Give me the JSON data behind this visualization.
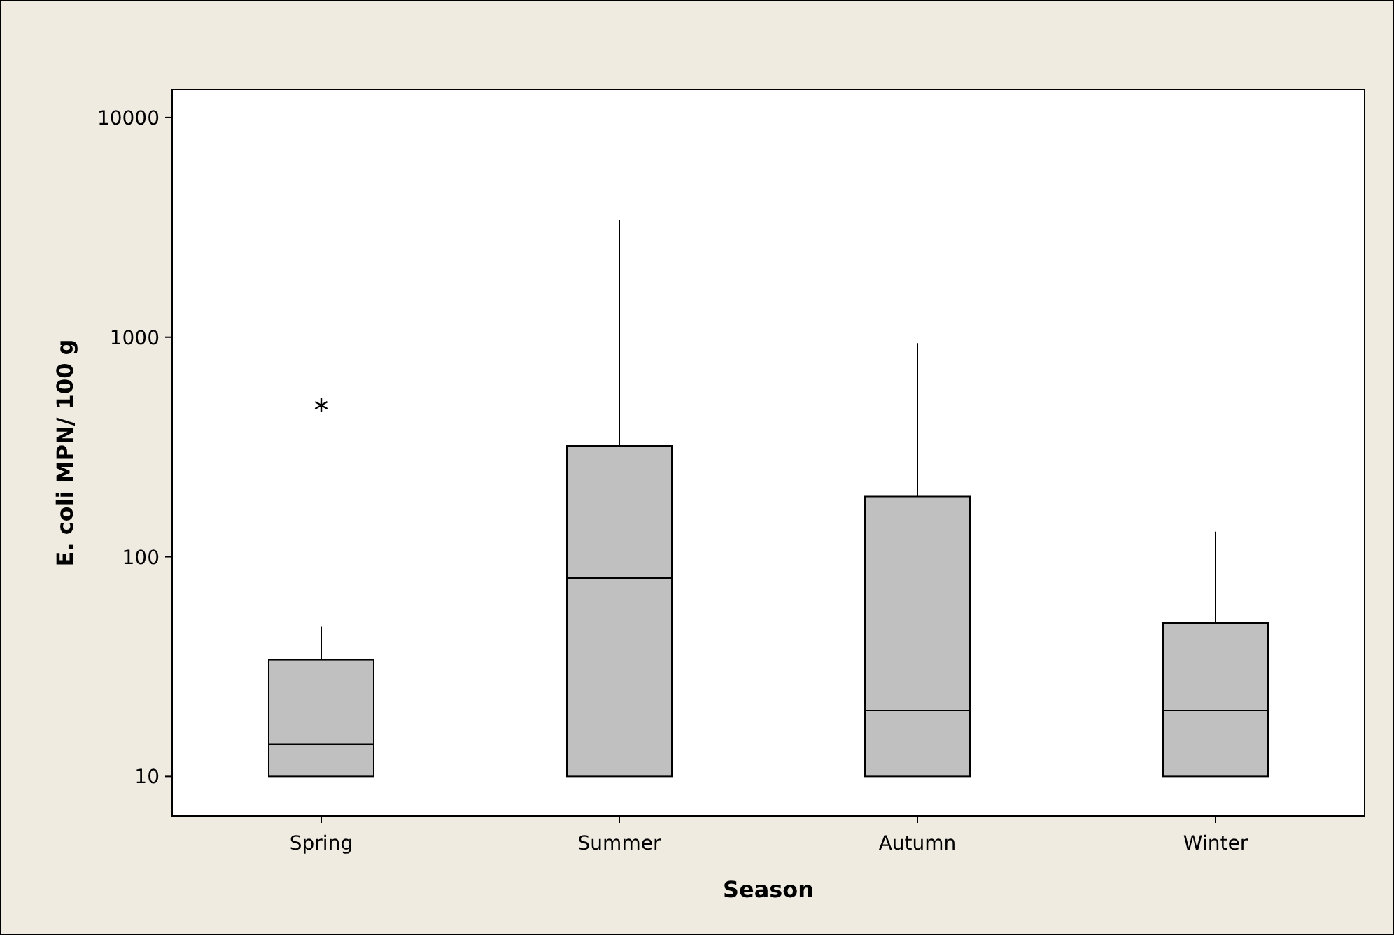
{
  "chart_data": {
    "type": "box",
    "xlabel": "Season",
    "ylabel": "E. coli MPN/ 100 g",
    "categories": [
      "Spring",
      "Summer",
      "Autumn",
      "Winter"
    ],
    "log": true,
    "ylim": [
      6.6,
      13400
    ],
    "yticks": [
      10,
      100,
      1000,
      10000
    ],
    "color": "#c0c0c0",
    "boxes": [
      {
        "low": 10,
        "q1": 10,
        "median": 14,
        "q3": 34,
        "high": 48,
        "outliers": [
          490
        ]
      },
      {
        "low": 10,
        "q1": 10,
        "median": 80,
        "q3": 320,
        "high": 3400
      },
      {
        "low": 10,
        "q1": 10,
        "median": 20,
        "q3": 188,
        "high": 940
      },
      {
        "low": 10,
        "q1": 10,
        "median": 20,
        "q3": 50,
        "high": 130
      }
    ]
  }
}
